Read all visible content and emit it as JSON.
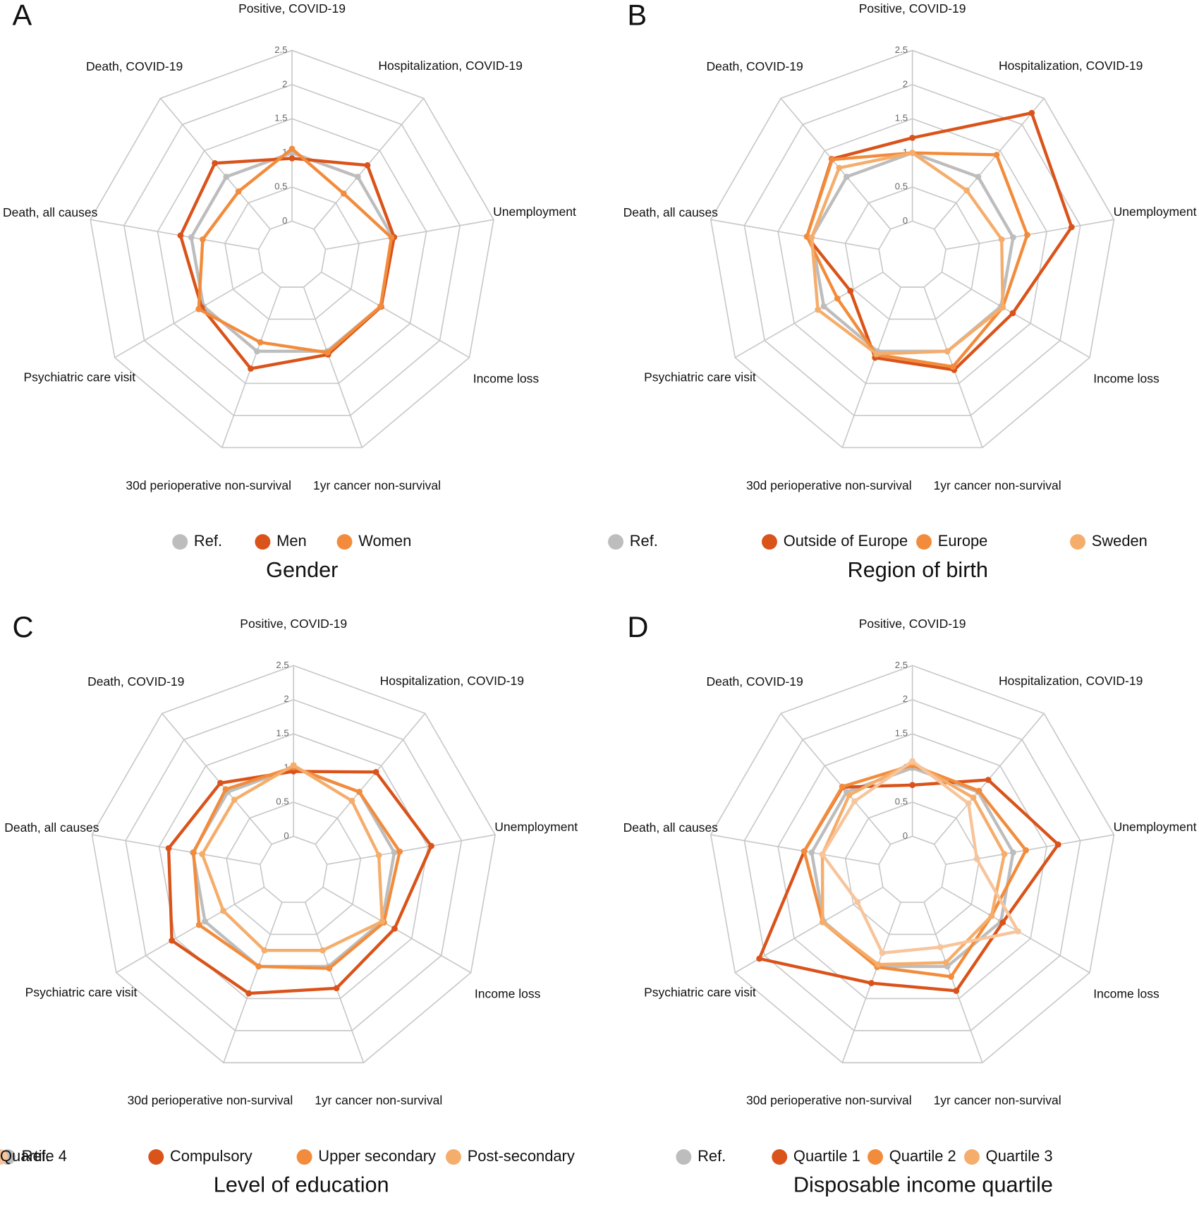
{
  "chart_data": [
    {
      "type": "radar",
      "panel_label": "A",
      "title": "Gender",
      "categories": [
        "Positive, COVID-19",
        "Hospitalization, COVID-19",
        "Unemployment",
        "Income loss",
        "1yr cancer non-survival",
        "30d perioperative non-survival",
        "Psychiatric care visit",
        "Death, all causes",
        "Death, COVID-19"
      ],
      "rlim": [
        0,
        2.5
      ],
      "rticks": [
        0,
        0.5,
        1,
        1.5,
        2,
        2.5
      ],
      "series": [
        {
          "name": "Ref.",
          "color": "#bdbdbd",
          "values": [
            1,
            1,
            1,
            1,
            1,
            1,
            1,
            1,
            1
          ]
        },
        {
          "name": "Men",
          "color": "#d9531a",
          "values": [
            0.92,
            1.22,
            1.02,
            1.01,
            1.05,
            1.27,
            1.03,
            1.16,
            1.26
          ]
        },
        {
          "name": "Women",
          "color": "#f28c3c",
          "values": [
            1.06,
            0.68,
            0.98,
            1.0,
            1.02,
            0.86,
            1.08,
            0.83,
            0.72
          ]
        }
      ]
    },
    {
      "type": "radar",
      "panel_label": "B",
      "title": "Region of birth",
      "categories": [
        "Positive, COVID-19",
        "Hospitalization, COVID-19",
        "Unemployment",
        "Income loss",
        "1yr cancer non-survival",
        "30d perioperative non-survival",
        "Psychiatric care visit",
        "Death, all causes",
        "Death, COVID-19"
      ],
      "rlim": [
        0,
        2.5
      ],
      "rticks": [
        0,
        0.5,
        1,
        1.5,
        2,
        2.5
      ],
      "series": [
        {
          "name": "Ref.",
          "color": "#bdbdbd",
          "values": [
            1,
            1,
            1,
            1,
            1,
            1,
            1,
            1,
            1
          ]
        },
        {
          "name": "Outside of Europe",
          "color": "#d9531a",
          "values": [
            1.22,
            2.22,
            1.87,
            1.2,
            1.29,
            1.1,
            0.55,
            1.07,
            1.34
          ]
        },
        {
          "name": "Europe",
          "color": "#f28c3c",
          "values": [
            1.0,
            1.42,
            1.21,
            1.03,
            1.24,
            1.05,
            0.77,
            1.07,
            1.33
          ]
        },
        {
          "name": "Sweden",
          "color": "#f5ad6b",
          "values": [
            1.0,
            0.74,
            0.83,
            1.03,
            1.0,
            1.04,
            1.1,
            1.0,
            1.17
          ]
        }
      ]
    },
    {
      "type": "radar",
      "panel_label": "C",
      "title": "Level of education",
      "categories": [
        "Positive, COVID-19",
        "Hospitalization, COVID-19",
        "Unemployment",
        "Income loss",
        "1yr cancer non-survival",
        "30d perioperative non-survival",
        "Psychiatric care visit",
        "Death, all causes",
        "Death, COVID-19"
      ],
      "rlim": [
        0,
        2.5
      ],
      "rticks": [
        0,
        0.5,
        1,
        1.5,
        2,
        2.5
      ],
      "series": [
        {
          "name": "Ref.",
          "color": "#bdbdbd",
          "values": [
            1,
            1,
            1,
            1,
            1,
            1,
            1,
            1,
            1
          ]
        },
        {
          "name": "Compulsory",
          "color": "#d9531a",
          "values": [
            0.95,
            1.38,
            1.55,
            1.21,
            1.34,
            1.42,
            1.56,
            1.36,
            1.17
          ]
        },
        {
          "name": "Upper secondary",
          "color": "#f28c3c",
          "values": [
            1.01,
            1.0,
            1.08,
            1.03,
            1.03,
            1.0,
            1.1,
            0.99,
            1.05
          ]
        },
        {
          "name": "Post-secondary",
          "color": "#f5ad6b",
          "values": [
            1.04,
            0.83,
            0.77,
            1.0,
            0.75,
            0.75,
            0.69,
            0.86,
            0.85
          ]
        }
      ]
    },
    {
      "type": "radar",
      "panel_label": "D",
      "title": "Disposable income quartile",
      "categories": [
        "Positive, COVID-19",
        "Hospitalization, COVID-19",
        "Unemployment",
        "Income loss",
        "1yr cancer non-survival",
        "30d perioperative non-survival",
        "Psychiatric care visit",
        "Death, all causes",
        "Death, COVID-19"
      ],
      "rlim": [
        0,
        2.5
      ],
      "rticks": [
        0,
        0.5,
        1,
        1.5,
        2,
        2.5
      ],
      "series": [
        {
          "name": "Ref.",
          "color": "#bdbdbd",
          "values": [
            1,
            1,
            1,
            1,
            1,
            1,
            1,
            1,
            1
          ]
        },
        {
          "name": "Quartile 1",
          "color": "#d9531a",
          "values": [
            0.75,
            1.23,
            1.67,
            1.03,
            1.38,
            1.26,
            2.09,
            1.11,
            1.09
          ]
        },
        {
          "name": "Quartile 2",
          "color": "#f28c3c",
          "values": [
            1.04,
            1.02,
            1.19,
            0.84,
            1.16,
            1.01,
            1.02,
            1.11,
            1.1
          ]
        },
        {
          "name": "Quartile 3",
          "color": "#f5ad6b",
          "values": [
            1.08,
            0.89,
            0.87,
            0.84,
            0.94,
            0.97,
            1.02,
            0.84,
            0.94
          ]
        },
        {
          "name": "Quartile 4",
          "color": "#f7c49b",
          "values": [
            1.1,
            0.78,
            0.46,
            1.29,
            0.7,
            0.79,
            0.43,
            0.84,
            0.82
          ]
        }
      ]
    }
  ]
}
